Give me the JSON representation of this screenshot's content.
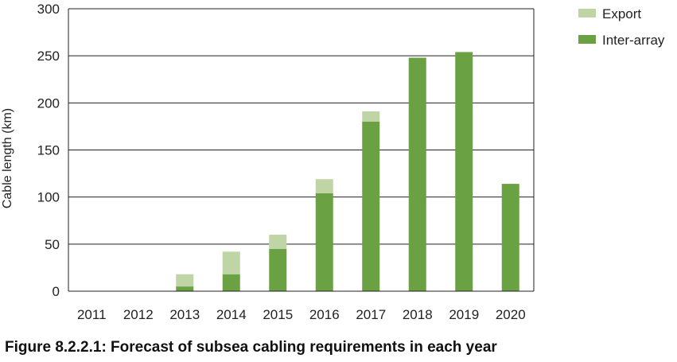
{
  "caption": "Figure 8.2.2.1: Forecast of subsea cabling requirements in each year",
  "colors": {
    "export": "#c0d5a6",
    "inter_array": "#6aa142",
    "grid": "#222222"
  },
  "chart_data": {
    "type": "bar",
    "stacked": true,
    "categories": [
      "2011",
      "2012",
      "2013",
      "2014",
      "2015",
      "2016",
      "2017",
      "2018",
      "2019",
      "2020"
    ],
    "series": [
      {
        "name": "Inter-array",
        "values": [
          0,
          0,
          5,
          18,
          45,
          104,
          180,
          248,
          254,
          114
        ]
      },
      {
        "name": "Export",
        "values": [
          0,
          0,
          13,
          24,
          15,
          15,
          11,
          0,
          0,
          0
        ]
      }
    ],
    "legend_order": [
      "Export",
      "Inter-array"
    ],
    "ylabel": "Cable length (km)",
    "ylim": [
      0,
      300
    ],
    "yticks": [
      0,
      50,
      100,
      150,
      200,
      250,
      300
    ],
    "grid": true,
    "legend_position": "top-right"
  }
}
